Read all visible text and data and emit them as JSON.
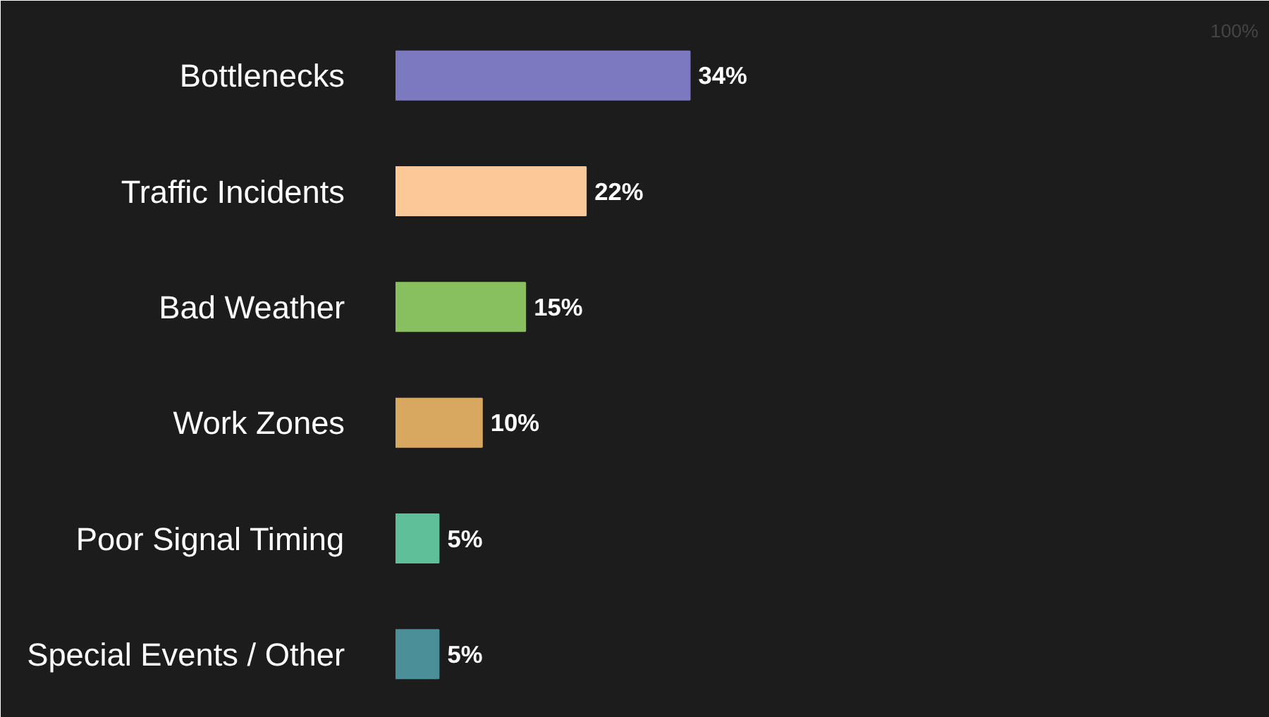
{
  "chart_data": {
    "type": "bar",
    "orientation": "horizontal",
    "categories": [
      "Bottlenecks",
      "Traffic Incidents",
      "Bad Weather",
      "Work Zones",
      "Poor Signal Timing",
      "Special Events / Other"
    ],
    "values": [
      34,
      22,
      15,
      10,
      5,
      5
    ],
    "colors": [
      "#7b79c0",
      "#fdc897",
      "#88c060",
      "#d9a860",
      "#5fbf98",
      "#4b8f99"
    ],
    "xlim": [
      0,
      100
    ],
    "annotations": [
      "100%"
    ],
    "value_labels": [
      "34%",
      "22%",
      "15%",
      "10%",
      "5%",
      "5%"
    ],
    "grid": false
  }
}
